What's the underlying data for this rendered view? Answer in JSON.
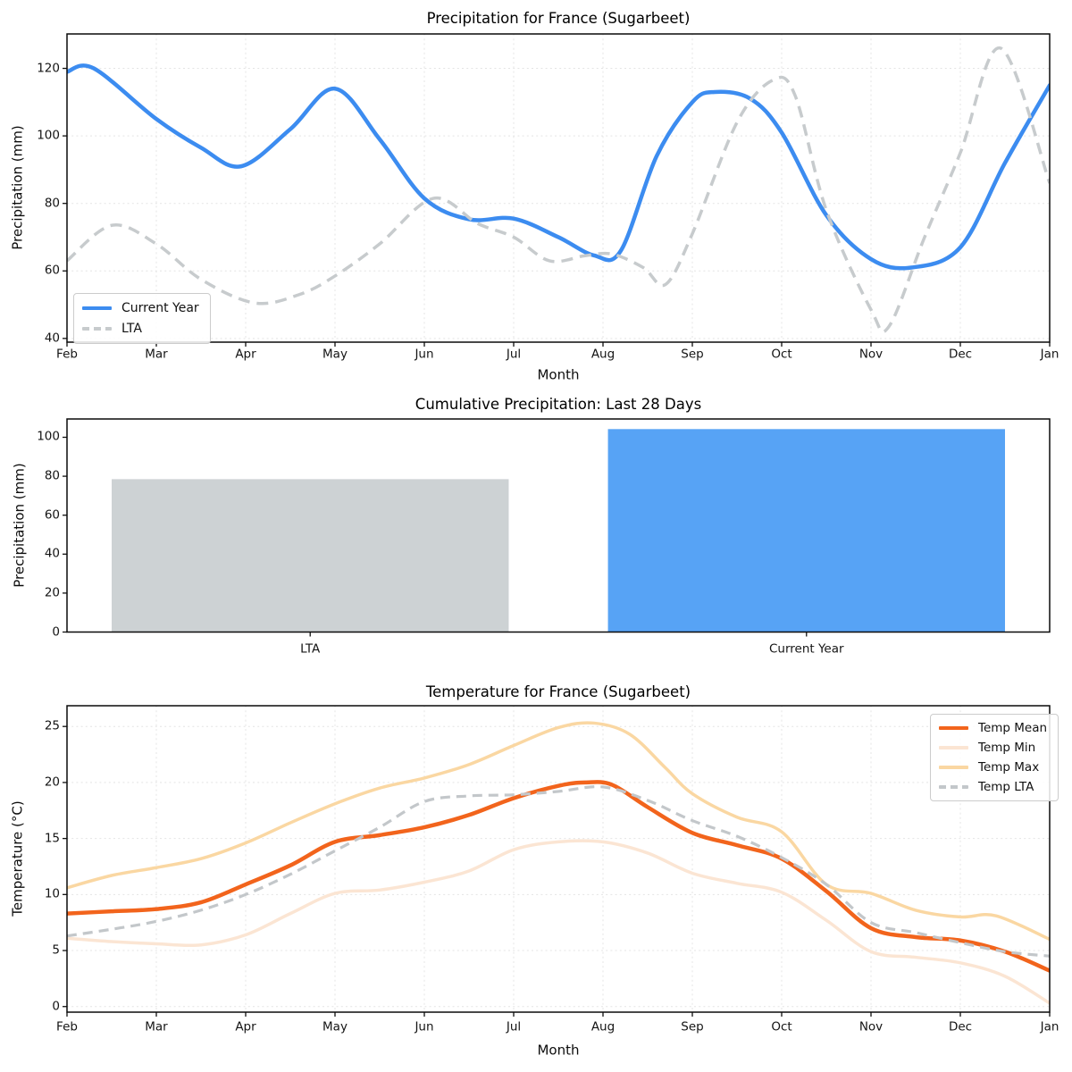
{
  "figure": {
    "background": "#ffffff",
    "months": [
      "Feb",
      "Mar",
      "Apr",
      "May",
      "Jun",
      "Jul",
      "Aug",
      "Sep",
      "Oct",
      "Nov",
      "Dec",
      "Jan"
    ]
  },
  "chart_data": [
    {
      "type": "line",
      "title": "Precipitation for France (Sugarbeet)",
      "xlabel": "Month",
      "ylabel": "Precipitation (mm)",
      "x_tick_labels": [
        "Feb",
        "Mar",
        "Apr",
        "May",
        "Jun",
        "Jul",
        "Aug",
        "Sep",
        "Oct",
        "Nov",
        "Dec",
        "Jan"
      ],
      "y_ticks": [
        40,
        60,
        80,
        100,
        120
      ],
      "ylim": [
        38.9,
        130.2
      ],
      "grid": true,
      "legend_position": "lower left",
      "series": [
        {
          "name": "Current Year",
          "color": "#3c8cf0",
          "dash": false,
          "width": 4.5,
          "x": [
            0,
            0.3,
            1,
            1.5,
            1.95,
            2.5,
            3,
            3.5,
            4,
            4.5,
            5,
            5.5,
            5.9,
            6.2,
            6.6,
            7,
            7.25,
            7.65,
            8,
            8.5,
            9,
            9.45,
            10,
            10.5,
            11
          ],
          "values": [
            119,
            120,
            105,
            96.5,
            91,
            102,
            114,
            99,
            81.5,
            75.3,
            75.5,
            70,
            64.6,
            66,
            94,
            110,
            113,
            111,
            101,
            76.5,
            63.5,
            61,
            67,
            92,
            115
          ]
        },
        {
          "name": "LTA",
          "color": "#c7cbcd",
          "dash": true,
          "width": 3.5,
          "x": [
            0,
            0.5,
            1,
            1.5,
            2.1,
            2.6,
            3,
            3.5,
            4.1,
            4.6,
            5,
            5.4,
            5.8,
            6.1,
            6.45,
            6.7,
            7,
            7.5,
            7.9,
            8.15,
            8.5,
            9,
            9.2,
            9.6,
            10,
            10.45,
            11
          ],
          "values": [
            63,
            73.5,
            68,
            57.5,
            50.5,
            53,
            58.5,
            68,
            81.5,
            74,
            70,
            63,
            64.5,
            65,
            61,
            56,
            71,
            104,
            116.5,
            112,
            78,
            48.5,
            43.5,
            70,
            95,
            126,
            86
          ]
        }
      ]
    },
    {
      "type": "bar",
      "title": "Cumulative Precipitation: Last 28 Days",
      "ylabel": "Precipitation (mm)",
      "categories": [
        "LTA",
        "Current Year"
      ],
      "values": [
        78.5,
        104.2
      ],
      "colors": [
        "#cdd2d4",
        "#57a3f5"
      ],
      "y_ticks": [
        0,
        20,
        40,
        60,
        80,
        100
      ],
      "ylim": [
        0,
        109.4
      ],
      "grid": false
    },
    {
      "type": "line",
      "title": "Temperature for France (Sugarbeet)",
      "xlabel": "Month",
      "ylabel": "Temperature (°C)",
      "x_tick_labels": [
        "Feb",
        "Mar",
        "Apr",
        "May",
        "Jun",
        "Jul",
        "Aug",
        "Sep",
        "Oct",
        "Nov",
        "Dec",
        "Jan"
      ],
      "y_ticks": [
        0,
        5,
        10,
        15,
        20,
        25
      ],
      "ylim": [
        -0.5,
        26.85
      ],
      "grid": true,
      "legend_position": "upper right",
      "series": [
        {
          "name": "Temp Mean",
          "color": "#f2641c",
          "dash": false,
          "width": 4.5,
          "x": [
            0,
            0.5,
            1,
            1.5,
            2,
            2.5,
            3,
            3.5,
            4,
            4.5,
            5,
            5.5,
            5.8,
            6.1,
            6.5,
            7,
            7.5,
            8,
            8.5,
            9,
            9.5,
            10,
            10.5,
            11
          ],
          "values": [
            8.3,
            8.5,
            8.7,
            9.3,
            10.9,
            12.6,
            14.7,
            15.3,
            16.0,
            17.1,
            18.6,
            19.7,
            20.0,
            19.8,
            17.8,
            15.5,
            14.4,
            13.2,
            10.3,
            7.0,
            6.2,
            5.9,
            4.9,
            3.2
          ]
        },
        {
          "name": "Temp Min",
          "color": "#fbe5d3",
          "dash": false,
          "width": 3.5,
          "x": [
            0,
            0.5,
            1,
            1.5,
            2,
            2.5,
            3,
            3.5,
            4,
            4.5,
            5,
            5.5,
            6,
            6.5,
            7,
            7.5,
            8,
            8.5,
            9,
            9.5,
            10,
            10.5,
            11
          ],
          "values": [
            6.1,
            5.8,
            5.6,
            5.5,
            6.4,
            8.3,
            10.1,
            10.4,
            11.1,
            12.1,
            14.0,
            14.7,
            14.7,
            13.7,
            11.9,
            11.0,
            10.2,
            7.7,
            4.9,
            4.4,
            3.9,
            2.7,
            0.3
          ]
        },
        {
          "name": "Temp Max",
          "color": "#fad7a2",
          "dash": false,
          "width": 3.5,
          "x": [
            0,
            0.5,
            1,
            1.5,
            2,
            2.5,
            3,
            3.5,
            4,
            4.5,
            5,
            5.5,
            5.9,
            6.3,
            6.7,
            7,
            7.5,
            8,
            8.5,
            9,
            9.5,
            10,
            10.4,
            11
          ],
          "values": [
            10.6,
            11.7,
            12.4,
            13.2,
            14.6,
            16.4,
            18.1,
            19.5,
            20.4,
            21.6,
            23.3,
            24.9,
            25.3,
            24.3,
            21.3,
            19.0,
            16.9,
            15.6,
            10.9,
            10.1,
            8.6,
            8.0,
            8.1,
            6.0
          ]
        },
        {
          "name": "Temp LTA",
          "color": "#c3c7ca",
          "dash": true,
          "width": 3.2,
          "x": [
            0,
            0.5,
            1,
            1.5,
            2,
            2.5,
            3,
            3.5,
            4,
            4.5,
            5,
            5.5,
            6,
            6.5,
            7,
            7.5,
            8,
            8.5,
            9,
            9.5,
            10,
            10.5,
            11
          ],
          "values": [
            6.3,
            6.9,
            7.6,
            8.6,
            10.0,
            11.8,
            13.9,
            16.0,
            18.3,
            18.8,
            18.9,
            19.2,
            19.6,
            18.4,
            16.6,
            15.2,
            13.3,
            10.9,
            7.5,
            6.6,
            5.7,
            4.9,
            4.5
          ]
        }
      ]
    }
  ]
}
